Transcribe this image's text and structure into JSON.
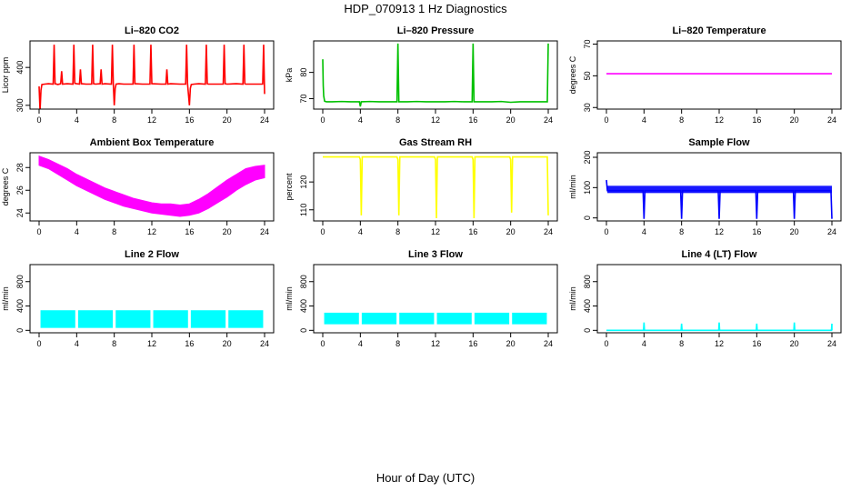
{
  "figure": {
    "title": "HDP_070913  1 Hz Diagnostics",
    "xlabel": "Hour of Day (UTC)"
  },
  "chart_data": [
    {
      "type": "line",
      "title": "Li–820 CO2",
      "ylabel": "Licor ppm",
      "color": "#ff0000",
      "xlim": [
        0,
        24
      ],
      "xticks": [
        0,
        4,
        8,
        12,
        16,
        20,
        24
      ],
      "ylim": [
        290,
        470
      ],
      "yticks": [
        300,
        400
      ],
      "series": [
        {
          "x": [
            0,
            0.1,
            0.2,
            0.3,
            0.6,
            1,
            1.5,
            1.6,
            1.7,
            2,
            2.3,
            2.4,
            2.5,
            3,
            3.6,
            3.7,
            3.8,
            4,
            4.3,
            4.4,
            4.5,
            5,
            5.6,
            5.7,
            5.8,
            6,
            6.5,
            6.6,
            6.7,
            7,
            7.7,
            7.8,
            7.9,
            8,
            8.1,
            8.2,
            8.5,
            9,
            10,
            10.1,
            10.2,
            11,
            11.8,
            11.9,
            12,
            13,
            13.5,
            13.6,
            13.7,
            14,
            15,
            15.6,
            15.7,
            15.8,
            16,
            16.1,
            16.2,
            16.5,
            17,
            17.7,
            17.8,
            17.9,
            18,
            19,
            19.6,
            19.7,
            19.8,
            20,
            21,
            21.7,
            21.8,
            21.9,
            22,
            23,
            23.8,
            23.9,
            24
          ],
          "y": [
            350,
            285,
            340,
            355,
            356,
            357,
            356,
            460,
            357,
            355,
            357,
            390,
            356,
            357,
            356,
            460,
            358,
            357,
            356,
            395,
            357,
            356,
            356,
            460,
            357,
            356,
            357,
            395,
            356,
            357,
            356,
            460,
            357,
            300,
            345,
            356,
            357,
            356,
            356,
            460,
            357,
            356,
            356,
            460,
            357,
            356,
            356,
            395,
            356,
            357,
            356,
            356,
            460,
            357,
            300,
            345,
            355,
            356,
            357,
            356,
            460,
            357,
            356,
            356,
            356,
            460,
            357,
            356,
            357,
            356,
            460,
            357,
            356,
            356,
            356,
            460,
            330
          ]
        }
      ]
    },
    {
      "type": "line",
      "title": "Li–820 Pressure",
      "ylabel": "kPa",
      "color": "#00c000",
      "xlim": [
        0,
        24
      ],
      "xticks": [
        0,
        4,
        8,
        12,
        16,
        20,
        24
      ],
      "ylim": [
        66,
        92
      ],
      "yticks": [
        70,
        80
      ],
      "series": [
        {
          "x": [
            0,
            0.05,
            0.1,
            0.2,
            0.4,
            1,
            2,
            3,
            3.9,
            4,
            4.1,
            5,
            6,
            7,
            7.9,
            8,
            8.1,
            9,
            10,
            11,
            12,
            13,
            14,
            15,
            15.9,
            16,
            16.1,
            17,
            18,
            19,
            20,
            21,
            22,
            23,
            23.9,
            24
          ],
          "y": [
            85,
            75,
            71,
            69,
            68.8,
            68.8,
            68.9,
            68.8,
            68.8,
            67,
            68.8,
            68.9,
            68.8,
            68.8,
            68.8,
            91,
            68.8,
            68.8,
            68.9,
            68.8,
            68.8,
            68.8,
            68.9,
            68.8,
            68.8,
            91,
            68.8,
            68.8,
            68.8,
            68.9,
            68.6,
            68.8,
            68.8,
            68.8,
            68.8,
            91
          ]
        }
      ]
    },
    {
      "type": "line",
      "title": "Li–820 Temperature",
      "ylabel": "degrees C",
      "color": "#ff00ff",
      "xlim": [
        0,
        24
      ],
      "xticks": [
        0,
        4,
        8,
        12,
        16,
        20,
        24
      ],
      "ylim": [
        29,
        72
      ],
      "yticks": [
        30,
        50,
        70
      ],
      "series": [
        {
          "x": [
            0,
            24
          ],
          "y": [
            51.3,
            51.3
          ]
        }
      ]
    },
    {
      "type": "area",
      "title": "Ambient Box Temperature",
      "ylabel": "degrees C",
      "color": "#ff00ff",
      "xlim": [
        0,
        24
      ],
      "xticks": [
        0,
        4,
        8,
        12,
        16,
        20,
        24
      ],
      "ylim": [
        23.3,
        29.3
      ],
      "yticks": [
        24,
        26,
        28
      ],
      "series": [
        {
          "x": [
            0,
            1,
            2,
            3,
            4,
            5,
            6,
            7,
            8,
            9,
            10,
            11,
            12,
            13,
            14,
            15,
            16,
            17,
            18,
            19,
            20,
            21,
            22,
            23,
            24
          ],
          "y_low": [
            28.2,
            27.9,
            27.4,
            26.9,
            26.4,
            26.0,
            25.6,
            25.2,
            24.9,
            24.6,
            24.4,
            24.2,
            24.0,
            23.9,
            23.8,
            23.7,
            23.8,
            24.0,
            24.4,
            24.9,
            25.4,
            26.0,
            26.5,
            26.9,
            27.1
          ],
          "y_high": [
            29.0,
            28.7,
            28.3,
            27.9,
            27.4,
            27.0,
            26.6,
            26.2,
            25.9,
            25.6,
            25.3,
            25.1,
            24.9,
            24.8,
            24.8,
            24.7,
            24.8,
            25.2,
            25.7,
            26.3,
            26.9,
            27.4,
            27.9,
            28.1,
            28.2
          ]
        }
      ]
    },
    {
      "type": "line",
      "title": "Gas Stream RH",
      "ylabel": "percent",
      "color": "#ffff00",
      "xlim": [
        0,
        24
      ],
      "xticks": [
        0,
        4,
        8,
        12,
        16,
        20,
        24
      ],
      "ylim": [
        106,
        130.5
      ],
      "yticks": [
        110,
        120
      ],
      "series": [
        {
          "x": [
            0,
            3.9,
            4,
            4.1,
            4.2,
            7.9,
            8,
            8.1,
            8.2,
            11.9,
            12,
            12.1,
            12.2,
            15.9,
            16,
            16.1,
            16.2,
            19.9,
            20,
            20.1,
            20.2,
            23.9,
            24
          ],
          "y": [
            129,
            129,
            128,
            108,
            129,
            129,
            128,
            108,
            129,
            129,
            128,
            107,
            129,
            129,
            128,
            107,
            129,
            129,
            128,
            109,
            129,
            129,
            108
          ]
        }
      ]
    },
    {
      "type": "line",
      "title": "Sample Flow",
      "ylabel": "ml/min",
      "color": "#0000ff",
      "xlim": [
        0,
        24
      ],
      "xticks": [
        0,
        4,
        8,
        12,
        16,
        20,
        24
      ],
      "ylim": [
        -10,
        215
      ],
      "yticks": [
        0,
        100,
        200
      ],
      "series": [
        {
          "x": [
            0,
            0.1,
            3.9,
            4,
            4.1,
            7.9,
            8,
            8.1,
            11.9,
            12,
            12.1,
            15.9,
            16,
            16.1,
            19.9,
            20,
            20.1,
            23.9,
            24
          ],
          "y": [
            125,
            90,
            90,
            -3,
            90,
            90,
            -3,
            90,
            90,
            -3,
            90,
            90,
            -3,
            90,
            90,
            -3,
            90,
            90,
            -3
          ],
          "band": [
            82,
            106
          ]
        }
      ]
    },
    {
      "type": "area",
      "title": "Line 2 Flow",
      "ylabel": "ml/min",
      "color": "#00ffff",
      "xlim": [
        0,
        24
      ],
      "xticks": [
        0,
        4,
        8,
        12,
        16,
        20,
        24
      ],
      "ylim": [
        -40,
        1080
      ],
      "yticks": [
        0,
        400,
        800
      ],
      "series": [
        {
          "x": [
            0,
            4,
            8,
            12,
            16,
            20,
            24
          ],
          "y_low": [
            40,
            40,
            40,
            40,
            40,
            40,
            40
          ],
          "y_high": [
            330,
            330,
            330,
            330,
            330,
            330,
            330
          ],
          "gaps": [
            4,
            8,
            12,
            16,
            20
          ]
        }
      ]
    },
    {
      "type": "area",
      "title": "Line 3 Flow",
      "ylabel": "ml/min",
      "color": "#00ffff",
      "xlim": [
        0,
        24
      ],
      "xticks": [
        0,
        4,
        8,
        12,
        16,
        20,
        24
      ],
      "ylim": [
        -40,
        1080
      ],
      "yticks": [
        0,
        400,
        800
      ],
      "series": [
        {
          "x": [
            0,
            4,
            8,
            12,
            16,
            20,
            24
          ],
          "y_low": [
            100,
            100,
            100,
            100,
            100,
            100,
            100
          ],
          "y_high": [
            290,
            290,
            290,
            290,
            290,
            290,
            290
          ],
          "gaps": [
            4,
            8,
            12,
            16,
            20
          ]
        }
      ]
    },
    {
      "type": "line",
      "title": "Line 4 (LT) Flow",
      "ylabel": "ml/min",
      "color": "#00ffff",
      "xlim": [
        0,
        24
      ],
      "xticks": [
        0,
        4,
        8,
        12,
        16,
        20,
        24
      ],
      "ylim": [
        -40,
        1080
      ],
      "yticks": [
        0,
        400,
        800
      ],
      "series": [
        {
          "x": [
            0,
            3.95,
            4,
            4.05,
            7.95,
            8,
            8.05,
            11.95,
            12,
            12.05,
            15.95,
            16,
            16.05,
            19.95,
            20,
            20.05,
            23.95,
            24,
            24
          ],
          "y": [
            0,
            0,
            130,
            0,
            0,
            110,
            0,
            0,
            130,
            0,
            0,
            110,
            0,
            0,
            130,
            0,
            0,
            110,
            0
          ]
        }
      ]
    }
  ]
}
